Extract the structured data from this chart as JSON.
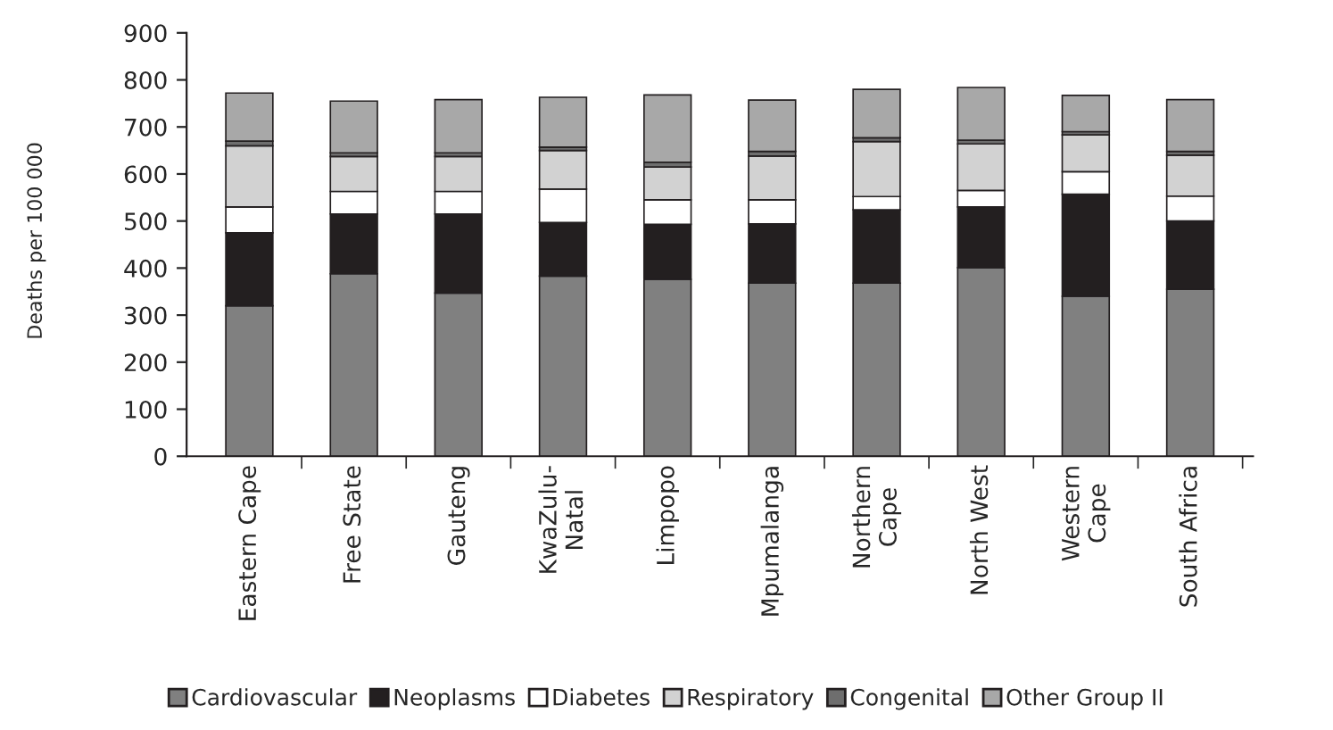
{
  "chart_data": {
    "type": "bar",
    "stacked": true,
    "ylabel": "Deaths per 100 000",
    "categories": [
      "Eastern Cape",
      "Free State",
      "Gauteng",
      "KwaZulu-\nNatal",
      "Limpopo",
      "Mpumalanga",
      "Northern\nCape",
      "North West",
      "Western\nCape",
      "South Africa"
    ],
    "series": [
      {
        "name": "Cardiovascular",
        "color": "#808080",
        "values": [
          320,
          388,
          347,
          383,
          376,
          368,
          368,
          401,
          340,
          355
        ]
      },
      {
        "name": "Neoplasms",
        "color": "#231f20",
        "values": [
          155,
          127,
          168,
          114,
          117,
          126,
          156,
          129,
          217,
          145
        ]
      },
      {
        "name": "Diabetes",
        "color": "#ffffff",
        "values": [
          55,
          48,
          48,
          71,
          52,
          51,
          28,
          35,
          48,
          53
        ]
      },
      {
        "name": "Respiratory",
        "color": "#d2d2d2",
        "values": [
          130,
          74,
          74,
          82,
          70,
          93,
          117,
          99,
          78,
          87
        ]
      },
      {
        "name": "Congenital",
        "color": "#6e6e6e",
        "values": [
          10,
          8,
          8,
          7,
          10,
          10,
          8,
          8,
          7,
          8
        ]
      },
      {
        "name": "Other Group II",
        "color": "#a8a8a8",
        "values": [
          102,
          110,
          113,
          106,
          143,
          109,
          103,
          112,
          77,
          110
        ]
      }
    ],
    "ylim": [
      0,
      900
    ],
    "yticks": [
      0,
      100,
      200,
      300,
      400,
      500,
      600,
      700,
      800,
      900
    ],
    "grid": false,
    "legend": "bottom"
  }
}
